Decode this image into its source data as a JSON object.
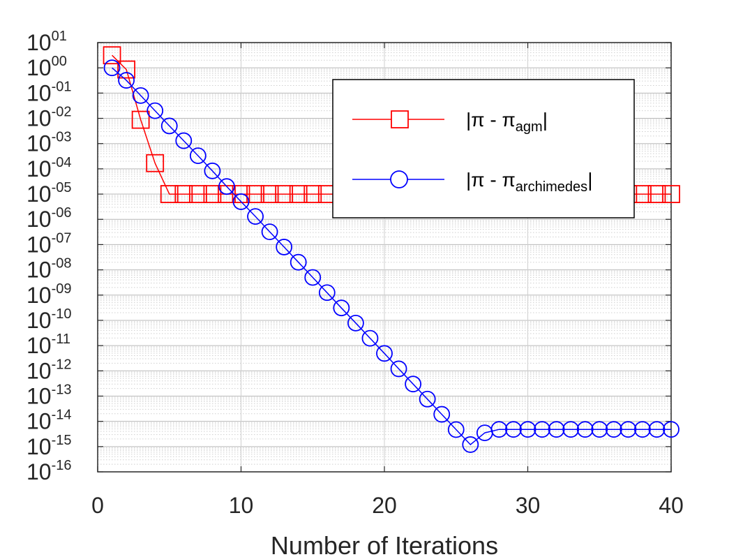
{
  "chart_data": {
    "type": "line",
    "title": "",
    "xlabel": "Number of Iterations",
    "ylabel": "",
    "xlim": [
      0,
      40
    ],
    "ylim": [
      1e-16,
      10
    ],
    "yscale": "log",
    "grid": true,
    "legend_position": "top-right",
    "xticks": [
      0,
      10,
      20,
      30,
      40
    ],
    "xtick_labels": [
      "0",
      "10",
      "20",
      "30",
      "40"
    ],
    "yticks": [
      {
        "value": 10,
        "base": "10",
        "exp": "01"
      },
      {
        "value": 1,
        "base": "10",
        "exp": "00"
      },
      {
        "value": 0.1,
        "base": "10",
        "exp": "-01"
      },
      {
        "value": 0.01,
        "base": "10",
        "exp": "-02"
      },
      {
        "value": 0.001,
        "base": "10",
        "exp": "-03"
      },
      {
        "value": 0.0001,
        "base": "10",
        "exp": "-04"
      },
      {
        "value": 1e-05,
        "base": "10",
        "exp": "-05"
      },
      {
        "value": 1e-06,
        "base": "10",
        "exp": "-06"
      },
      {
        "value": 1e-07,
        "base": "10",
        "exp": "-07"
      },
      {
        "value": 1e-08,
        "base": "10",
        "exp": "-08"
      },
      {
        "value": 1e-09,
        "base": "10",
        "exp": "-09"
      },
      {
        "value": 1e-10,
        "base": "10",
        "exp": "-10"
      },
      {
        "value": 1e-11,
        "base": "10",
        "exp": "-11"
      },
      {
        "value": 1e-12,
        "base": "10",
        "exp": "-12"
      },
      {
        "value": 1e-13,
        "base": "10",
        "exp": "-13"
      },
      {
        "value": 1e-14,
        "base": "10",
        "exp": "-14"
      },
      {
        "value": 1e-15,
        "base": "10",
        "exp": "-15"
      },
      {
        "value": 1e-16,
        "base": "10",
        "exp": "-16"
      }
    ],
    "series": [
      {
        "legend_main": "|π - π",
        "legend_sub": "agm",
        "legend_end": "|",
        "color": "#ff0000",
        "marker": "square",
        "x": [
          1,
          2,
          3,
          4,
          5,
          6,
          7,
          8,
          9,
          10,
          11,
          12,
          13,
          14,
          15,
          16,
          17,
          18,
          19,
          20,
          21,
          22,
          23,
          24,
          25,
          26,
          27,
          28,
          29,
          30,
          31,
          32,
          33,
          34,
          35,
          36,
          37,
          38,
          39,
          40
        ],
        "y": [
          3.14,
          0.858,
          0.00876,
          0.000168,
          1e-05,
          1e-05,
          1e-05,
          1e-05,
          1e-05,
          1e-05,
          1e-05,
          1e-05,
          1e-05,
          1e-05,
          1e-05,
          1e-05,
          1e-05,
          1e-05,
          1e-05,
          1e-05,
          1e-05,
          1e-05,
          1e-05,
          1e-05,
          1e-05,
          1e-05,
          1e-05,
          1e-05,
          1e-05,
          1e-05,
          1e-05,
          1e-05,
          1e-05,
          1e-05,
          1e-05,
          1e-05,
          1e-05,
          1e-05,
          1e-05,
          1e-05
        ]
      },
      {
        "legend_main": "|π - π",
        "legend_sub": "archimedes",
        "legend_end": "|",
        "color": "#0000ff",
        "marker": "circle",
        "x": [
          1,
          2,
          3,
          4,
          5,
          6,
          7,
          8,
          9,
          10,
          11,
          12,
          13,
          14,
          15,
          16,
          17,
          18,
          19,
          20,
          21,
          22,
          23,
          24,
          25,
          26,
          27,
          28,
          29,
          30,
          31,
          32,
          33,
          34,
          35,
          36,
          37,
          38,
          39,
          40
        ],
        "y": [
          1.0,
          0.32,
          0.08,
          0.02,
          0.005,
          0.0013,
          0.00033,
          8.3e-05,
          2e-05,
          5e-06,
          1.3e-06,
          3.2e-07,
          8e-08,
          2e-08,
          5e-09,
          1.25e-09,
          3.1e-10,
          7.8e-11,
          1.95e-11,
          4.9e-12,
          1.2e-12,
          3e-13,
          7.6e-14,
          1.9e-14,
          4.7e-15,
          1.2e-15,
          3.5e-15,
          4.8e-15,
          4.8e-15,
          4.8e-15,
          4.8e-15,
          4.8e-15,
          4.8e-15,
          4.8e-15,
          4.8e-15,
          4.8e-15,
          4.8e-15,
          4.8e-15,
          4.8e-15,
          4.8e-15
        ]
      }
    ]
  }
}
